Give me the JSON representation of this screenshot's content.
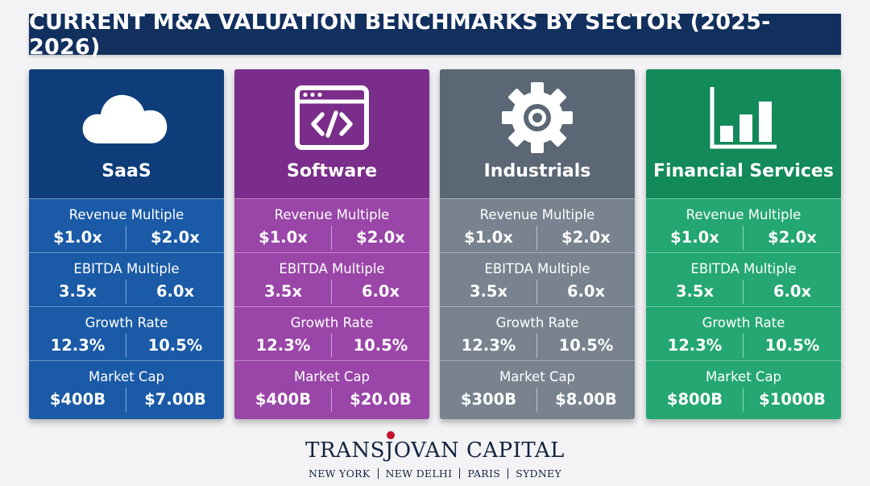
{
  "title": "CURRENT M&A VALUATION BENCHMARKS BY SECTOR (2025-2026)",
  "metric_labels": {
    "revenue": "Revenue Multiple",
    "ebitda": "EBITDA Multiple",
    "growth": "Growth Rate",
    "market_cap": "Market Cap"
  },
  "sectors": [
    {
      "name": "SaaS",
      "icon": "cloud-icon",
      "colors": {
        "head": "#0e3d7a",
        "body": "#1a5aa7"
      },
      "revenue": [
        "$1.0x",
        "$2.0x"
      ],
      "ebitda": [
        "3.5x",
        "6.0x"
      ],
      "growth": [
        "12.3%",
        "10.5%"
      ],
      "market_cap": [
        "$400B",
        "$7.00B"
      ]
    },
    {
      "name": "Software",
      "icon": "code-window-icon",
      "colors": {
        "head": "#7a2d8a",
        "body": "#9a45a8"
      },
      "revenue": [
        "$1.0x",
        "$2.0x"
      ],
      "ebitda": [
        "3.5x",
        "6.0x"
      ],
      "growth": [
        "12.3%",
        "10.5%"
      ],
      "market_cap": [
        "$400B",
        "$20.0B"
      ]
    },
    {
      "name": "Industrials",
      "icon": "gear-icon",
      "colors": {
        "head": "#5b6775",
        "body": "#78838f"
      },
      "revenue": [
        "$1.0x",
        "$2.0x"
      ],
      "ebitda": [
        "3.5x",
        "6.0x"
      ],
      "growth": [
        "12.3%",
        "10.5%"
      ],
      "market_cap": [
        "$300B",
        "$8.00B"
      ]
    },
    {
      "name": "Financial Services",
      "icon": "bar-chart-icon",
      "colors": {
        "head": "#138a5a",
        "body": "#24a772"
      },
      "revenue": [
        "$1.0x",
        "$2.0x"
      ],
      "ebitda": [
        "3.5x",
        "6.0x"
      ],
      "growth": [
        "12.3%",
        "10.5%"
      ],
      "market_cap": [
        "$800B",
        "$1000B"
      ]
    }
  ],
  "footer": {
    "brand": "TRANSJOVAN CAPITAL",
    "accent_color": "#c8102e",
    "cities": [
      "NEW YORK",
      "NEW DELHI",
      "PARIS",
      "SYDNEY"
    ]
  }
}
